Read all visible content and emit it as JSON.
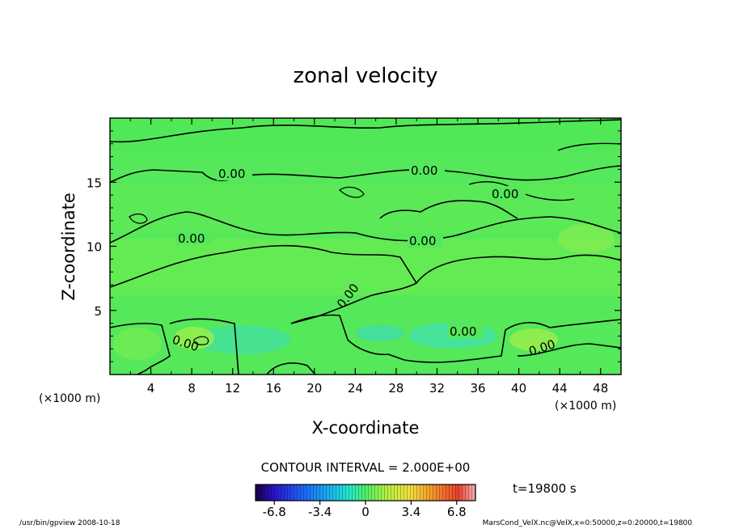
{
  "chart_data": {
    "type": "heatmap",
    "title": "zonal velocity",
    "xlabel": "X-coordinate",
    "ylabel": "Z-coordinate",
    "x_unit": "(×1000 m)",
    "x_unit_right": "(×1000 m)",
    "xlim": [
      0,
      50
    ],
    "ylim": [
      0,
      20
    ],
    "x_ticks": [
      "4",
      "8",
      "12",
      "16",
      "20",
      "24",
      "28",
      "32",
      "36",
      "40",
      "44",
      "48"
    ],
    "y_ticks": [
      "5",
      "10",
      "15"
    ],
    "contour_labels": [
      "0.00",
      "0.00",
      "0.00",
      "0.00",
      "0.00",
      "0.00",
      "0.00",
      "0.00",
      "0.00"
    ],
    "contour_interval": "CONTOUR INTERVAL = 2.000E+00",
    "colorbar": {
      "range": [
        -8.2,
        8.2
      ],
      "tick_labels": [
        "-6.8",
        "-3.4",
        "0",
        "3.4",
        "6.8"
      ],
      "tick_values": [
        -6.8,
        -3.4,
        0,
        3.4,
        6.8
      ]
    },
    "time_label": "t=19800 s",
    "colors": {
      "field_background": "#55e85a",
      "contour": "#000000"
    }
  },
  "footer": {
    "left": "/usr/bin/gpview  2008-10-18",
    "right": "MarsCond_VelX.nc@VelX,x=0:50000,z=0:20000,t=19800"
  }
}
